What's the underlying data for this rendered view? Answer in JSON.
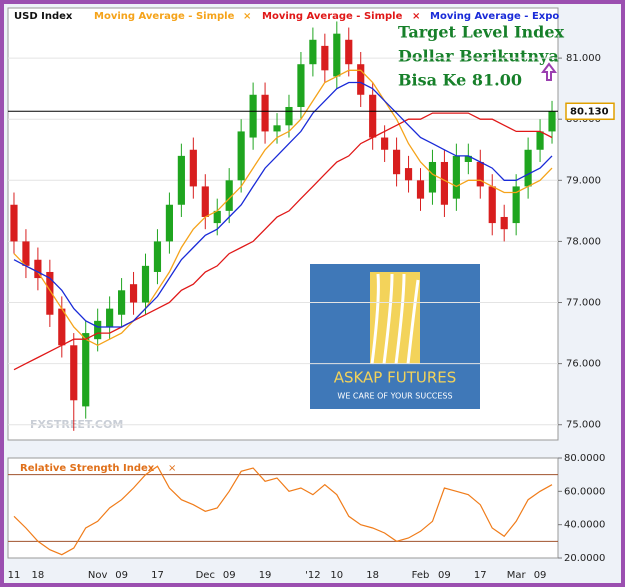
{
  "chart_data": [
    {
      "type": "candlestick",
      "title": "USD Index",
      "categories": [
        "11",
        null,
        "18",
        null,
        null,
        null,
        null,
        "Nov",
        null,
        "09",
        null,
        null,
        "17",
        null,
        null,
        null,
        "Dec",
        null,
        "09",
        null,
        null,
        "19",
        null,
        null,
        null,
        "'12",
        null,
        "10",
        null,
        null,
        "18",
        null,
        null,
        null,
        "Feb",
        null,
        "09",
        null,
        null,
        "17",
        null,
        null,
        "Mar",
        null,
        "09",
        null
      ],
      "open": [
        78.6,
        78.0,
        77.7,
        77.5,
        76.9,
        76.3,
        75.3,
        76.4,
        76.6,
        76.8,
        77.3,
        77.0,
        77.5,
        78.0,
        78.6,
        79.5,
        78.9,
        78.3,
        78.5,
        79.0,
        79.7,
        80.4,
        79.8,
        79.9,
        80.2,
        80.9,
        81.2,
        80.7,
        81.3,
        80.9,
        80.4,
        79.7,
        79.5,
        79.2,
        79.0,
        78.8,
        79.3,
        78.7,
        79.3,
        79.3,
        78.9,
        78.4,
        78.3,
        78.9,
        79.5,
        79.8
      ],
      "high": [
        78.8,
        78.2,
        77.9,
        77.7,
        77.1,
        76.5,
        76.7,
        76.9,
        77.1,
        77.4,
        77.5,
        77.8,
        78.2,
        78.8,
        79.6,
        79.7,
        79.1,
        78.7,
        79.2,
        80.0,
        80.6,
        80.6,
        80.1,
        80.4,
        81.1,
        81.5,
        81.4,
        81.6,
        81.5,
        81.1,
        80.6,
        79.9,
        79.7,
        79.4,
        79.2,
        79.5,
        79.5,
        79.6,
        79.6,
        79.5,
        79.1,
        78.6,
        79.1,
        79.7,
        80.0,
        80.3
      ],
      "low": [
        77.8,
        77.4,
        77.2,
        76.6,
        76.1,
        74.9,
        75.1,
        76.2,
        76.4,
        76.6,
        76.8,
        76.8,
        77.3,
        77.8,
        78.4,
        78.7,
        78.2,
        78.1,
        78.3,
        78.8,
        79.5,
        79.6,
        79.6,
        79.7,
        80.0,
        80.7,
        80.6,
        80.5,
        80.7,
        80.2,
        79.5,
        79.3,
        78.9,
        78.8,
        78.5,
        78.6,
        78.4,
        78.5,
        79.1,
        78.7,
        78.1,
        78.0,
        78.1,
        78.7,
        79.3,
        79.6
      ],
      "close": [
        78.0,
        77.6,
        77.4,
        76.8,
        76.3,
        75.4,
        76.5,
        76.7,
        76.9,
        77.2,
        77.0,
        77.6,
        78.0,
        78.6,
        79.4,
        78.9,
        78.4,
        78.5,
        79.0,
        79.8,
        80.4,
        79.8,
        79.9,
        80.2,
        80.9,
        81.3,
        80.8,
        81.4,
        80.9,
        80.4,
        79.7,
        79.5,
        79.1,
        79.0,
        78.7,
        79.3,
        78.6,
        79.4,
        79.4,
        78.9,
        78.3,
        78.2,
        78.9,
        79.5,
        79.8,
        80.13
      ],
      "up_color": "#1fa51f",
      "down_color": "#d81e1e",
      "series": [
        {
          "name": "Moving Average - Simple",
          "color": "#f5a31a",
          "values": [
            77.8,
            77.6,
            77.5,
            77.2,
            76.9,
            76.6,
            76.4,
            76.3,
            76.4,
            76.5,
            76.7,
            76.9,
            77.2,
            77.5,
            77.9,
            78.2,
            78.4,
            78.5,
            78.7,
            78.9,
            79.2,
            79.5,
            79.7,
            79.8,
            80.0,
            80.3,
            80.6,
            80.7,
            80.8,
            80.8,
            80.6,
            80.3,
            80.0,
            79.6,
            79.3,
            79.1,
            79.0,
            78.9,
            79.0,
            79.0,
            78.9,
            78.8,
            78.8,
            78.9,
            79.0,
            79.2
          ]
        },
        {
          "name": "Moving Average - Simple",
          "color": "#e01818",
          "values": [
            75.9,
            76.0,
            76.1,
            76.2,
            76.3,
            76.4,
            76.4,
            76.5,
            76.5,
            76.6,
            76.7,
            76.8,
            76.9,
            77.0,
            77.2,
            77.3,
            77.5,
            77.6,
            77.8,
            77.9,
            78.0,
            78.2,
            78.4,
            78.5,
            78.7,
            78.9,
            79.1,
            79.3,
            79.4,
            79.6,
            79.7,
            79.8,
            79.9,
            80.0,
            80.0,
            80.1,
            80.1,
            80.1,
            80.1,
            80.0,
            80.0,
            79.9,
            79.8,
            79.8,
            79.8,
            79.7
          ]
        },
        {
          "name": "Moving Average - Expo",
          "color": "#1a2bd8",
          "values": [
            77.7,
            77.6,
            77.5,
            77.4,
            77.2,
            76.9,
            76.7,
            76.6,
            76.6,
            76.6,
            76.7,
            76.9,
            77.1,
            77.4,
            77.7,
            77.9,
            78.1,
            78.2,
            78.4,
            78.6,
            78.9,
            79.2,
            79.4,
            79.6,
            79.8,
            80.1,
            80.3,
            80.5,
            80.6,
            80.6,
            80.5,
            80.3,
            80.1,
            79.9,
            79.7,
            79.6,
            79.5,
            79.4,
            79.4,
            79.3,
            79.2,
            79.0,
            79.0,
            79.1,
            79.2,
            79.4
          ]
        }
      ],
      "ylim": [
        74.75,
        81.82
      ],
      "yticks": [
        {
          "value": 81,
          "label": "81.000"
        },
        {
          "value": 80,
          "label": "80.000"
        },
        {
          "value": 79,
          "label": "79.000"
        },
        {
          "value": 78,
          "label": "78.000"
        },
        {
          "value": 77,
          "label": "77.000"
        },
        {
          "value": 76,
          "label": "76.000"
        },
        {
          "value": 75,
          "label": "75.000"
        }
      ],
      "grid": true,
      "last_price": {
        "value": 80.13,
        "label": "80.130"
      },
      "annotations": [
        "Target Level Index",
        "Dollar Berikutnya",
        "Bisa Ke 81.00"
      ]
    },
    {
      "type": "line",
      "title": "Relative Strength Index",
      "series": [
        {
          "name": "Relative Strength Index",
          "color": "#f07c1a",
          "values": [
            45,
            38,
            30,
            25,
            22,
            26,
            38,
            42,
            50,
            55,
            62,
            70,
            75,
            62,
            55,
            52,
            48,
            50,
            60,
            72,
            74,
            66,
            68,
            60,
            62,
            58,
            64,
            58,
            45,
            40,
            38,
            35,
            30,
            32,
            36,
            42,
            62,
            60,
            58,
            52,
            38,
            33,
            42,
            55,
            60,
            64
          ]
        }
      ],
      "ylim": [
        20,
        80
      ],
      "yticks": [
        {
          "value": 80,
          "label": "80.0000"
        },
        {
          "value": 60,
          "label": "60.0000"
        },
        {
          "value": 40,
          "label": "40.0000"
        },
        {
          "value": 20,
          "label": "20.0000"
        }
      ],
      "levels": [
        70,
        30
      ],
      "level_color": "#a0522d"
    }
  ],
  "logo": {
    "title": "ASKAP FUTURES",
    "tagline": "WE CARE OF YOUR SUCCESS"
  },
  "watermark": "FXSTREET.COM"
}
